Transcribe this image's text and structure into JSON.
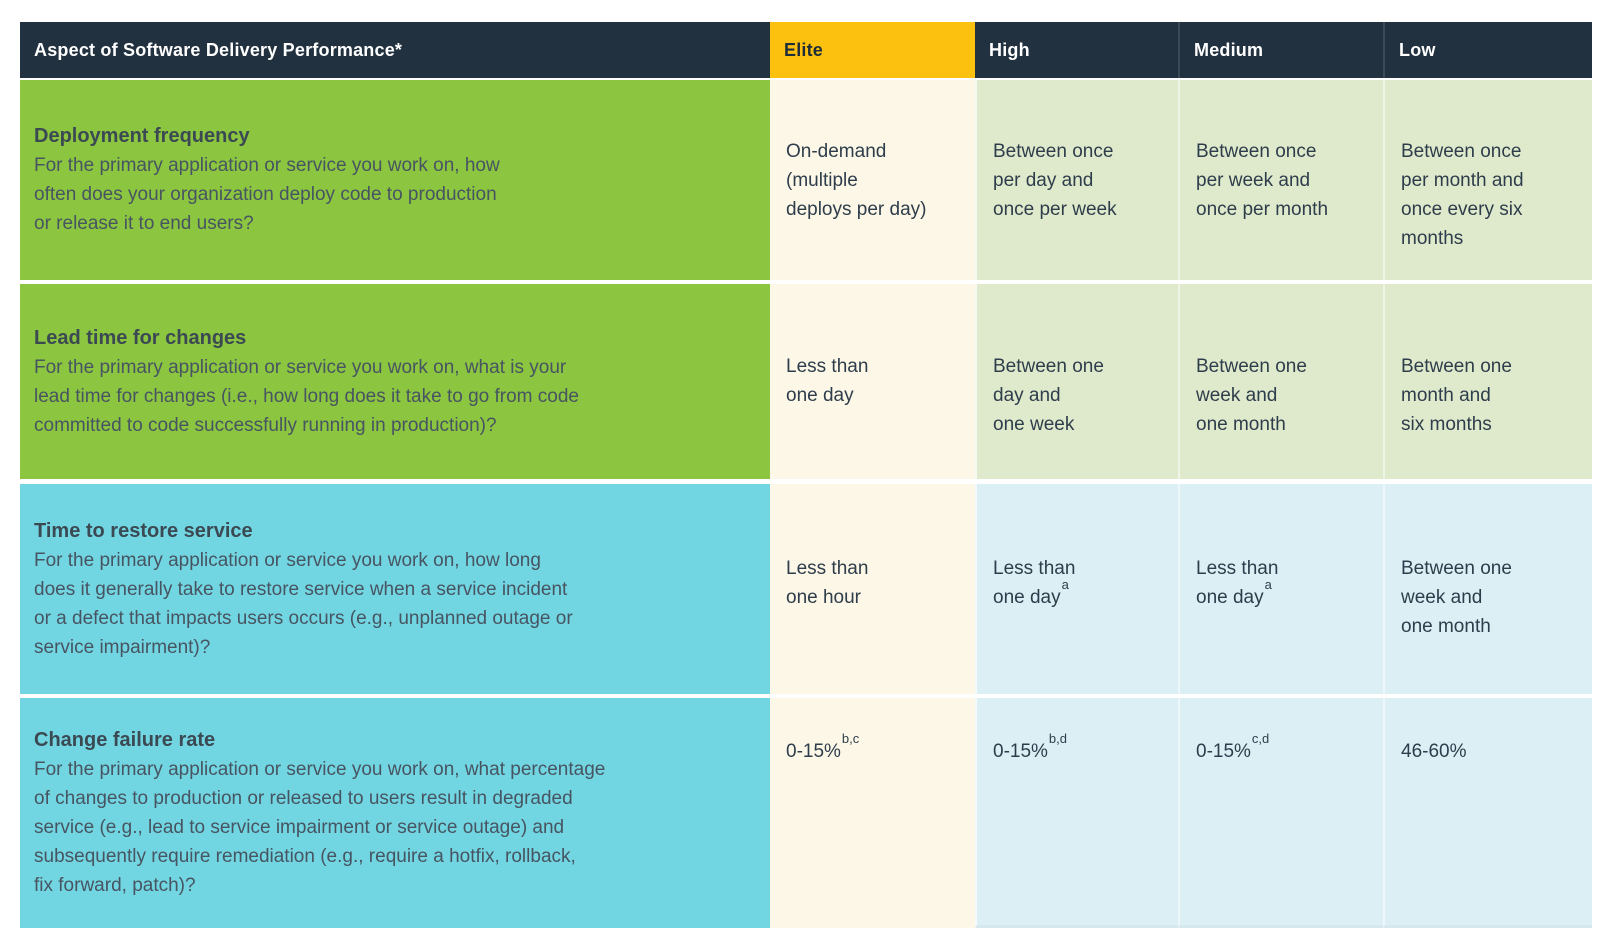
{
  "header": {
    "aspect_label": "Aspect of Software Delivery Performance*",
    "levels": [
      "Elite",
      "High",
      "Medium",
      "Low"
    ]
  },
  "rows": [
    {
      "title": "Deployment frequency",
      "question": "For the primary application or service you work on, how\noften does your organization deploy code to production\nor release it to end users?",
      "cells": [
        {
          "t": "On-demand\n(multiple\ndeploys per day)"
        },
        {
          "t": "Between once\nper day and\nonce per week"
        },
        {
          "t": "Between once\nper week and\nonce per month"
        },
        {
          "t": "Between once\nper month and\nonce every six\nmonths"
        }
      ]
    },
    {
      "title": "Lead time for changes",
      "question": "For the primary application or service you work on, what is your\nlead time for changes (i.e., how long does it take to go from code\ncommitted to code successfully running in production)?",
      "cells": [
        {
          "t": "Less than\none day"
        },
        {
          "t": "Between one\nday and\none week"
        },
        {
          "t": "Between one\nweek and\none month"
        },
        {
          "t": "Between one\nmonth and\nsix months"
        }
      ]
    },
    {
      "title": "Time to restore service",
      "question": "For the primary application or service you work on, how long\ndoes it generally take to restore service when a service incident\nor a defect that impacts users occurs (e.g., unplanned outage or\nservice impairment)?",
      "cells": [
        {
          "t": "Less than\none hour"
        },
        {
          "t": "Less than\none day",
          "s": "a"
        },
        {
          "t": "Less than\none day",
          "s": "a"
        },
        {
          "t": "Between one\nweek and\none month"
        }
      ]
    },
    {
      "title": "Change failure rate",
      "question": "For the primary application or service you work on, what percentage\nof changes to production or released to users result in degraded\nservice (e.g., lead to service impairment or service outage) and\nsubsequently require remediation (e.g., require a hotfix, rollback,\nfix forward, patch)?",
      "cells": [
        {
          "t": "0-15%",
          "s": "b,c"
        },
        {
          "t": "0-15%",
          "s": "b,d"
        },
        {
          "t": "0-15%",
          "s": "c,d"
        },
        {
          "t": "46-60%"
        }
      ]
    }
  ],
  "colors": {
    "header_navy": "#22313F",
    "elite_amber": "#FCC10F",
    "aspect_green": "#8CC540",
    "aspect_cyan": "#72D6E2",
    "elite_column_cream": "#FCF7E6",
    "value_light_green": "#DFEACC",
    "value_light_blue": "#DBEFF5",
    "value_text": "#2E3D4B",
    "question_text": "#475461"
  }
}
